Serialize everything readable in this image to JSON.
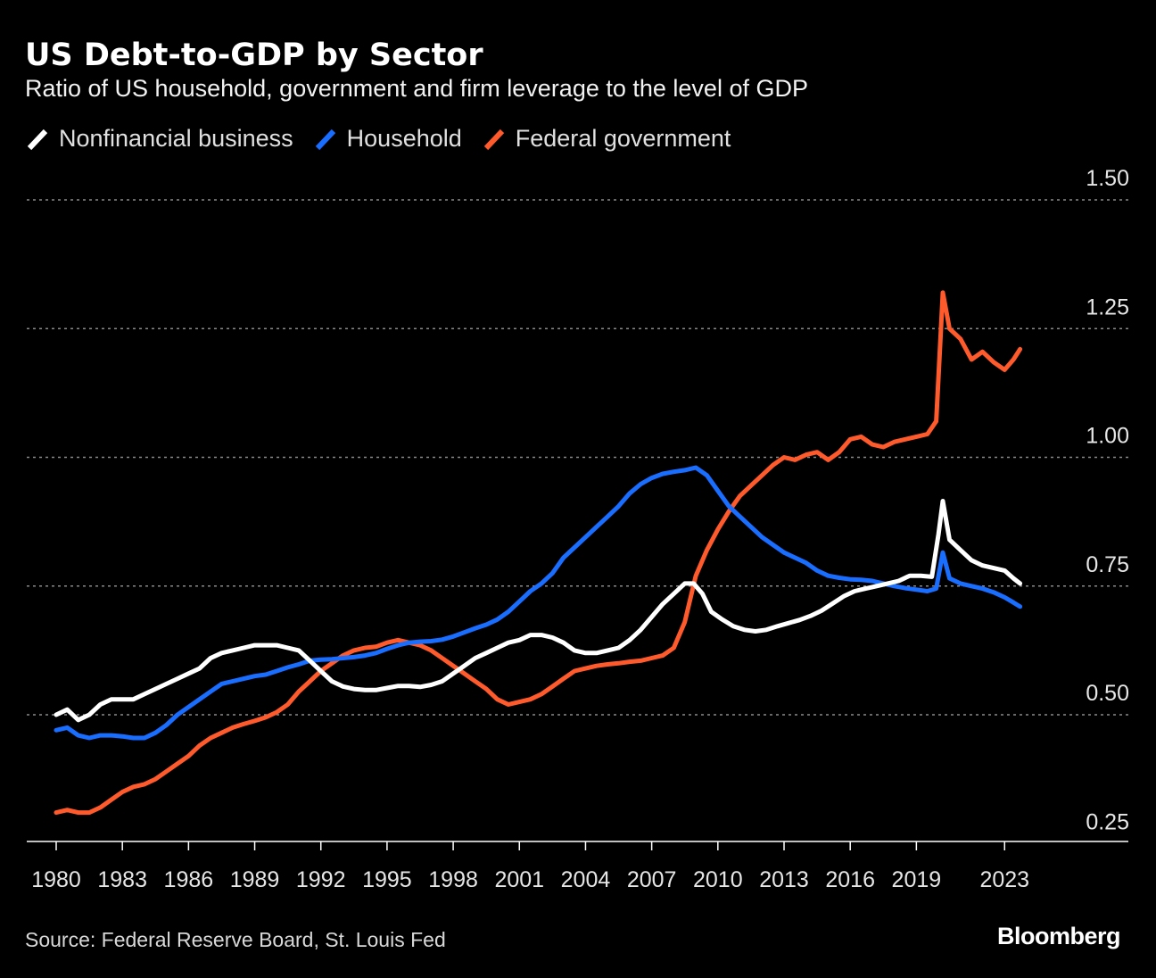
{
  "header": {
    "title": "US Debt-to-GDP by Sector",
    "subtitle": "Ratio of US household, government and firm leverage to the level of GDP"
  },
  "legend": [
    {
      "label": "Nonfinancial business",
      "color": "#ffffff"
    },
    {
      "label": "Household",
      "color": "#1a6eff"
    },
    {
      "label": "Federal government",
      "color": "#ff5a2c"
    }
  ],
  "footer": {
    "source": "Source: Federal Reserve Board, St. Louis Fed",
    "brand": "Bloomberg"
  },
  "chart_data": {
    "type": "line",
    "title": "US Debt-to-GDP by Sector",
    "xlabel": "",
    "ylabel": "",
    "xlim": [
      1980,
      2024
    ],
    "ylim": [
      0.25,
      1.5
    ],
    "yticks": [
      0.25,
      0.5,
      0.75,
      1.0,
      1.25,
      1.5
    ],
    "ytick_labels": [
      "0.25",
      "0.50",
      "0.75",
      "1.00",
      "1.25",
      "1.50"
    ],
    "xticks": [
      1980,
      1983,
      1986,
      1989,
      1992,
      1995,
      1998,
      2001,
      2004,
      2007,
      2010,
      2013,
      2016,
      2019,
      2023
    ],
    "xtick_labels": [
      "1980",
      "1983",
      "1986",
      "1989",
      "1992",
      "1995",
      "1998",
      "2001",
      "2004",
      "2007",
      "2010",
      "2013",
      "2016",
      "2019",
      "2023"
    ],
    "grid": "horizontal dotted",
    "legend_position": "top-left",
    "series": [
      {
        "name": "Nonfinancial business",
        "color": "#ffffff",
        "points": [
          [
            1980.0,
            0.5
          ],
          [
            1980.5,
            0.51
          ],
          [
            1981.0,
            0.49
          ],
          [
            1981.5,
            0.5
          ],
          [
            1982.0,
            0.52
          ],
          [
            1982.5,
            0.53
          ],
          [
            1983.0,
            0.53
          ],
          [
            1983.5,
            0.53
          ],
          [
            1984.0,
            0.54
          ],
          [
            1984.5,
            0.55
          ],
          [
            1985.0,
            0.56
          ],
          [
            1985.5,
            0.57
          ],
          [
            1986.0,
            0.58
          ],
          [
            1986.5,
            0.59
          ],
          [
            1987.0,
            0.61
          ],
          [
            1987.5,
            0.62
          ],
          [
            1988.0,
            0.625
          ],
          [
            1988.5,
            0.63
          ],
          [
            1989.0,
            0.635
          ],
          [
            1989.5,
            0.635
          ],
          [
            1990.0,
            0.635
          ],
          [
            1990.5,
            0.63
          ],
          [
            1991.0,
            0.625
          ],
          [
            1991.5,
            0.605
          ],
          [
            1992.0,
            0.585
          ],
          [
            1992.5,
            0.565
          ],
          [
            1993.0,
            0.555
          ],
          [
            1993.5,
            0.55
          ],
          [
            1994.0,
            0.548
          ],
          [
            1994.5,
            0.548
          ],
          [
            1995.0,
            0.552
          ],
          [
            1995.5,
            0.556
          ],
          [
            1996.0,
            0.556
          ],
          [
            1996.5,
            0.554
          ],
          [
            1997.0,
            0.558
          ],
          [
            1997.5,
            0.565
          ],
          [
            1998.0,
            0.58
          ],
          [
            1998.5,
            0.595
          ],
          [
            1999.0,
            0.61
          ],
          [
            1999.5,
            0.62
          ],
          [
            2000.0,
            0.63
          ],
          [
            2000.5,
            0.64
          ],
          [
            2001.0,
            0.645
          ],
          [
            2001.5,
            0.655
          ],
          [
            2002.0,
            0.655
          ],
          [
            2002.5,
            0.65
          ],
          [
            2003.0,
            0.64
          ],
          [
            2003.5,
            0.625
          ],
          [
            2004.0,
            0.62
          ],
          [
            2004.5,
            0.62
          ],
          [
            2005.0,
            0.625
          ],
          [
            2005.5,
            0.63
          ],
          [
            2006.0,
            0.645
          ],
          [
            2006.5,
            0.665
          ],
          [
            2007.0,
            0.69
          ],
          [
            2007.5,
            0.715
          ],
          [
            2008.0,
            0.735
          ],
          [
            2008.5,
            0.755
          ],
          [
            2008.9,
            0.755
          ],
          [
            2009.3,
            0.735
          ],
          [
            2009.7,
            0.7
          ],
          [
            2010.2,
            0.685
          ],
          [
            2010.7,
            0.672
          ],
          [
            2011.2,
            0.665
          ],
          [
            2011.7,
            0.662
          ],
          [
            2012.2,
            0.665
          ],
          [
            2012.7,
            0.672
          ],
          [
            2013.2,
            0.678
          ],
          [
            2013.7,
            0.684
          ],
          [
            2014.2,
            0.692
          ],
          [
            2014.7,
            0.702
          ],
          [
            2015.2,
            0.716
          ],
          [
            2015.7,
            0.73
          ],
          [
            2016.2,
            0.74
          ],
          [
            2016.7,
            0.745
          ],
          [
            2017.2,
            0.75
          ],
          [
            2017.7,
            0.755
          ],
          [
            2018.2,
            0.76
          ],
          [
            2018.7,
            0.77
          ],
          [
            2019.2,
            0.77
          ],
          [
            2019.7,
            0.768
          ],
          [
            2020.0,
            0.85
          ],
          [
            2020.2,
            0.915
          ],
          [
            2020.5,
            0.84
          ],
          [
            2021.0,
            0.82
          ],
          [
            2021.5,
            0.8
          ],
          [
            2022.0,
            0.79
          ],
          [
            2022.5,
            0.785
          ],
          [
            2023.0,
            0.78
          ],
          [
            2023.4,
            0.765
          ],
          [
            2023.7,
            0.755
          ]
        ]
      },
      {
        "name": "Household",
        "color": "#1a6eff",
        "points": [
          [
            1980.0,
            0.47
          ],
          [
            1980.5,
            0.475
          ],
          [
            1981.0,
            0.46
          ],
          [
            1981.5,
            0.455
          ],
          [
            1982.0,
            0.46
          ],
          [
            1982.5,
            0.46
          ],
          [
            1983.0,
            0.458
          ],
          [
            1983.5,
            0.455
          ],
          [
            1984.0,
            0.455
          ],
          [
            1984.5,
            0.465
          ],
          [
            1985.0,
            0.48
          ],
          [
            1985.5,
            0.5
          ],
          [
            1986.0,
            0.515
          ],
          [
            1986.5,
            0.53
          ],
          [
            1987.0,
            0.545
          ],
          [
            1987.5,
            0.56
          ],
          [
            1988.0,
            0.565
          ],
          [
            1988.5,
            0.57
          ],
          [
            1989.0,
            0.575
          ],
          [
            1989.5,
            0.578
          ],
          [
            1990.0,
            0.585
          ],
          [
            1990.5,
            0.592
          ],
          [
            1991.0,
            0.598
          ],
          [
            1991.5,
            0.605
          ],
          [
            1992.0,
            0.607
          ],
          [
            1992.5,
            0.608
          ],
          [
            1993.0,
            0.61
          ],
          [
            1993.5,
            0.612
          ],
          [
            1994.0,
            0.615
          ],
          [
            1994.5,
            0.62
          ],
          [
            1995.0,
            0.628
          ],
          [
            1995.5,
            0.635
          ],
          [
            1996.0,
            0.64
          ],
          [
            1996.5,
            0.642
          ],
          [
            1997.0,
            0.643
          ],
          [
            1997.5,
            0.646
          ],
          [
            1998.0,
            0.652
          ],
          [
            1998.5,
            0.66
          ],
          [
            1999.0,
            0.668
          ],
          [
            1999.5,
            0.675
          ],
          [
            2000.0,
            0.685
          ],
          [
            2000.5,
            0.7
          ],
          [
            2001.0,
            0.72
          ],
          [
            2001.5,
            0.74
          ],
          [
            2002.0,
            0.755
          ],
          [
            2002.5,
            0.775
          ],
          [
            2003.0,
            0.805
          ],
          [
            2003.5,
            0.825
          ],
          [
            2004.0,
            0.845
          ],
          [
            2004.5,
            0.865
          ],
          [
            2005.0,
            0.885
          ],
          [
            2005.5,
            0.905
          ],
          [
            2006.0,
            0.93
          ],
          [
            2006.5,
            0.948
          ],
          [
            2007.0,
            0.96
          ],
          [
            2007.5,
            0.968
          ],
          [
            2008.0,
            0.972
          ],
          [
            2008.5,
            0.975
          ],
          [
            2009.0,
            0.98
          ],
          [
            2009.5,
            0.965
          ],
          [
            2010.0,
            0.935
          ],
          [
            2010.5,
            0.905
          ],
          [
            2011.0,
            0.885
          ],
          [
            2011.5,
            0.865
          ],
          [
            2012.0,
            0.845
          ],
          [
            2012.5,
            0.83
          ],
          [
            2013.0,
            0.815
          ],
          [
            2013.5,
            0.805
          ],
          [
            2014.0,
            0.795
          ],
          [
            2014.5,
            0.78
          ],
          [
            2015.0,
            0.77
          ],
          [
            2015.5,
            0.766
          ],
          [
            2016.0,
            0.763
          ],
          [
            2016.5,
            0.762
          ],
          [
            2017.0,
            0.76
          ],
          [
            2017.5,
            0.755
          ],
          [
            2018.0,
            0.75
          ],
          [
            2018.5,
            0.746
          ],
          [
            2019.0,
            0.743
          ],
          [
            2019.5,
            0.74
          ],
          [
            2019.9,
            0.745
          ],
          [
            2020.2,
            0.815
          ],
          [
            2020.5,
            0.765
          ],
          [
            2021.0,
            0.755
          ],
          [
            2021.5,
            0.75
          ],
          [
            2022.0,
            0.745
          ],
          [
            2022.5,
            0.738
          ],
          [
            2023.0,
            0.728
          ],
          [
            2023.4,
            0.718
          ],
          [
            2023.7,
            0.71
          ]
        ]
      },
      {
        "name": "Federal government",
        "color": "#ff5a2c",
        "points": [
          [
            1980.0,
            0.31
          ],
          [
            1980.5,
            0.315
          ],
          [
            1981.0,
            0.31
          ],
          [
            1981.5,
            0.31
          ],
          [
            1982.0,
            0.32
          ],
          [
            1982.5,
            0.335
          ],
          [
            1983.0,
            0.35
          ],
          [
            1983.5,
            0.36
          ],
          [
            1984.0,
            0.365
          ],
          [
            1984.5,
            0.375
          ],
          [
            1985.0,
            0.39
          ],
          [
            1985.5,
            0.405
          ],
          [
            1986.0,
            0.42
          ],
          [
            1986.5,
            0.44
          ],
          [
            1987.0,
            0.455
          ],
          [
            1987.5,
            0.465
          ],
          [
            1988.0,
            0.475
          ],
          [
            1988.5,
            0.482
          ],
          [
            1989.0,
            0.488
          ],
          [
            1989.5,
            0.495
          ],
          [
            1990.0,
            0.505
          ],
          [
            1990.5,
            0.52
          ],
          [
            1991.0,
            0.545
          ],
          [
            1991.5,
            0.565
          ],
          [
            1992.0,
            0.585
          ],
          [
            1992.5,
            0.6
          ],
          [
            1993.0,
            0.615
          ],
          [
            1993.5,
            0.625
          ],
          [
            1994.0,
            0.63
          ],
          [
            1994.5,
            0.632
          ],
          [
            1995.0,
            0.64
          ],
          [
            1995.5,
            0.645
          ],
          [
            1996.0,
            0.64
          ],
          [
            1996.5,
            0.635
          ],
          [
            1997.0,
            0.625
          ],
          [
            1997.5,
            0.61
          ],
          [
            1998.0,
            0.595
          ],
          [
            1998.5,
            0.58
          ],
          [
            1999.0,
            0.565
          ],
          [
            1999.5,
            0.55
          ],
          [
            2000.0,
            0.53
          ],
          [
            2000.5,
            0.52
          ],
          [
            2001.0,
            0.525
          ],
          [
            2001.5,
            0.53
          ],
          [
            2002.0,
            0.54
          ],
          [
            2002.5,
            0.555
          ],
          [
            2003.0,
            0.57
          ],
          [
            2003.5,
            0.585
          ],
          [
            2004.0,
            0.59
          ],
          [
            2004.5,
            0.595
          ],
          [
            2005.0,
            0.598
          ],
          [
            2005.5,
            0.6
          ],
          [
            2006.0,
            0.603
          ],
          [
            2006.5,
            0.605
          ],
          [
            2007.0,
            0.61
          ],
          [
            2007.5,
            0.615
          ],
          [
            2008.0,
            0.63
          ],
          [
            2008.5,
            0.68
          ],
          [
            2009.0,
            0.77
          ],
          [
            2009.5,
            0.82
          ],
          [
            2010.0,
            0.86
          ],
          [
            2010.5,
            0.895
          ],
          [
            2011.0,
            0.925
          ],
          [
            2011.5,
            0.945
          ],
          [
            2012.0,
            0.965
          ],
          [
            2012.5,
            0.985
          ],
          [
            2013.0,
            1.0
          ],
          [
            2013.5,
            0.995
          ],
          [
            2014.0,
            1.005
          ],
          [
            2014.5,
            1.01
          ],
          [
            2015.0,
            0.995
          ],
          [
            2015.5,
            1.01
          ],
          [
            2016.0,
            1.035
          ],
          [
            2016.5,
            1.04
          ],
          [
            2017.0,
            1.025
          ],
          [
            2017.5,
            1.02
          ],
          [
            2018.0,
            1.03
          ],
          [
            2018.5,
            1.035
          ],
          [
            2019.0,
            1.04
          ],
          [
            2019.5,
            1.045
          ],
          [
            2019.9,
            1.07
          ],
          [
            2020.2,
            1.32
          ],
          [
            2020.5,
            1.25
          ],
          [
            2021.0,
            1.23
          ],
          [
            2021.5,
            1.19
          ],
          [
            2022.0,
            1.205
          ],
          [
            2022.5,
            1.185
          ],
          [
            2023.0,
            1.17
          ],
          [
            2023.4,
            1.19
          ],
          [
            2023.7,
            1.21
          ]
        ]
      }
    ]
  }
}
